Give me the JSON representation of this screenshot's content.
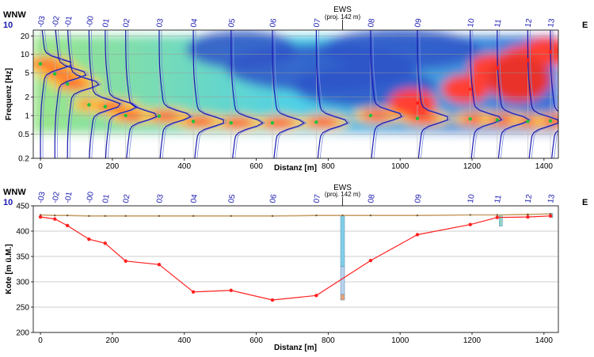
{
  "chart_data": [
    {
      "type": "heatmap",
      "title": "",
      "xlabel": "Distanz [m]",
      "ylabel": "Frequenz [Hz]",
      "xlim": [
        -20,
        1440
      ],
      "ylim": [
        0.2,
        25
      ],
      "y_scale": "log",
      "x_ticks": [
        "0",
        "200",
        "400",
        "600",
        "800",
        "1000",
        "1200",
        "1400"
      ],
      "y_ticks": [
        "0.2",
        "0.5",
        "1",
        "2",
        "5",
        "10",
        "20"
      ],
      "direction_left": "WNW",
      "direction_right": "E",
      "start_number": "10",
      "borehole_label": "EWS",
      "borehole_note": "(proj. 142 m)",
      "borehole_x": 840,
      "stations": [
        {
          "name": "-03",
          "x": 0
        },
        {
          "name": "-02",
          "x": 40
        },
        {
          "name": "-01",
          "x": 75
        },
        {
          "name": "-00",
          "x": 135
        },
        {
          "name": "01",
          "x": 180
        },
        {
          "name": "02",
          "x": 237
        },
        {
          "name": "03",
          "x": 330
        },
        {
          "name": "04",
          "x": 425
        },
        {
          "name": "05",
          "x": 530
        },
        {
          "name": "06",
          "x": 645
        },
        {
          "name": "07",
          "x": 767
        },
        {
          "name": "08",
          "x": 918
        },
        {
          "name": "09",
          "x": 1048
        },
        {
          "name": "10",
          "x": 1195
        },
        {
          "name": "11",
          "x": 1270
        },
        {
          "name": "12",
          "x": 1355
        },
        {
          "name": "13",
          "x": 1418
        }
      ],
      "series": [
        {
          "marker": "green",
          "points": [
            [
              0,
              7.0
            ],
            [
              40,
              4.8
            ],
            [
              75,
              3.3
            ],
            [
              135,
              1.5
            ],
            [
              180,
              1.4
            ],
            [
              237,
              1.0
            ],
            [
              330,
              0.98
            ],
            [
              425,
              0.8
            ],
            [
              530,
              0.76
            ],
            [
              645,
              0.76
            ],
            [
              767,
              0.78
            ],
            [
              918,
              1.0
            ],
            [
              1048,
              0.9
            ],
            [
              1195,
              0.88
            ],
            [
              1270,
              0.85
            ],
            [
              1355,
              0.8
            ],
            [
              1418,
              0.82
            ]
          ]
        },
        {
          "marker": "red",
          "points": [
            [
              1048,
              1.6
            ],
            [
              1195,
              2.7
            ],
            [
              1270,
              6.0
            ],
            [
              1355,
              8.0
            ],
            [
              1418,
              11.0
            ]
          ]
        }
      ]
    },
    {
      "type": "line",
      "title": "",
      "xlabel": "Distanz [m]",
      "ylabel": "Kote [m ü.M.]",
      "xlim": [
        -20,
        1440
      ],
      "ylim": [
        200,
        450
      ],
      "x_ticks": [
        "0",
        "200",
        "400",
        "600",
        "800",
        "1000",
        "1200",
        "1400"
      ],
      "y_ticks": [
        "200",
        "250",
        "300",
        "350",
        "400",
        "450"
      ],
      "direction_left": "WNW",
      "direction_right": "E",
      "start_number": "10",
      "borehole_label": "EWS",
      "borehole_note": "(proj. 142 m)",
      "borehole_x": 840,
      "series": [
        {
          "name": "",
          "color": "#c8a06a",
          "x": [
            0,
            40,
            75,
            135,
            180,
            237,
            330,
            425,
            530,
            645,
            767,
            840,
            918,
            1048,
            1195,
            1270,
            1355,
            1418
          ],
          "y": [
            432,
            431,
            431,
            430,
            430,
            430,
            430,
            430,
            430,
            430,
            431,
            431,
            431,
            431,
            432,
            432,
            433,
            434
          ]
        },
        {
          "name": "",
          "color": "#ff2020",
          "x": [
            0,
            40,
            75,
            135,
            180,
            237,
            330,
            425,
            530,
            645,
            767,
            918,
            1048,
            1195,
            1270,
            1355,
            1418
          ],
          "y": [
            428,
            424,
            411,
            384,
            376,
            341,
            334,
            280,
            283,
            264,
            273,
            342,
            393,
            413,
            427,
            428,
            430
          ]
        }
      ]
    }
  ]
}
